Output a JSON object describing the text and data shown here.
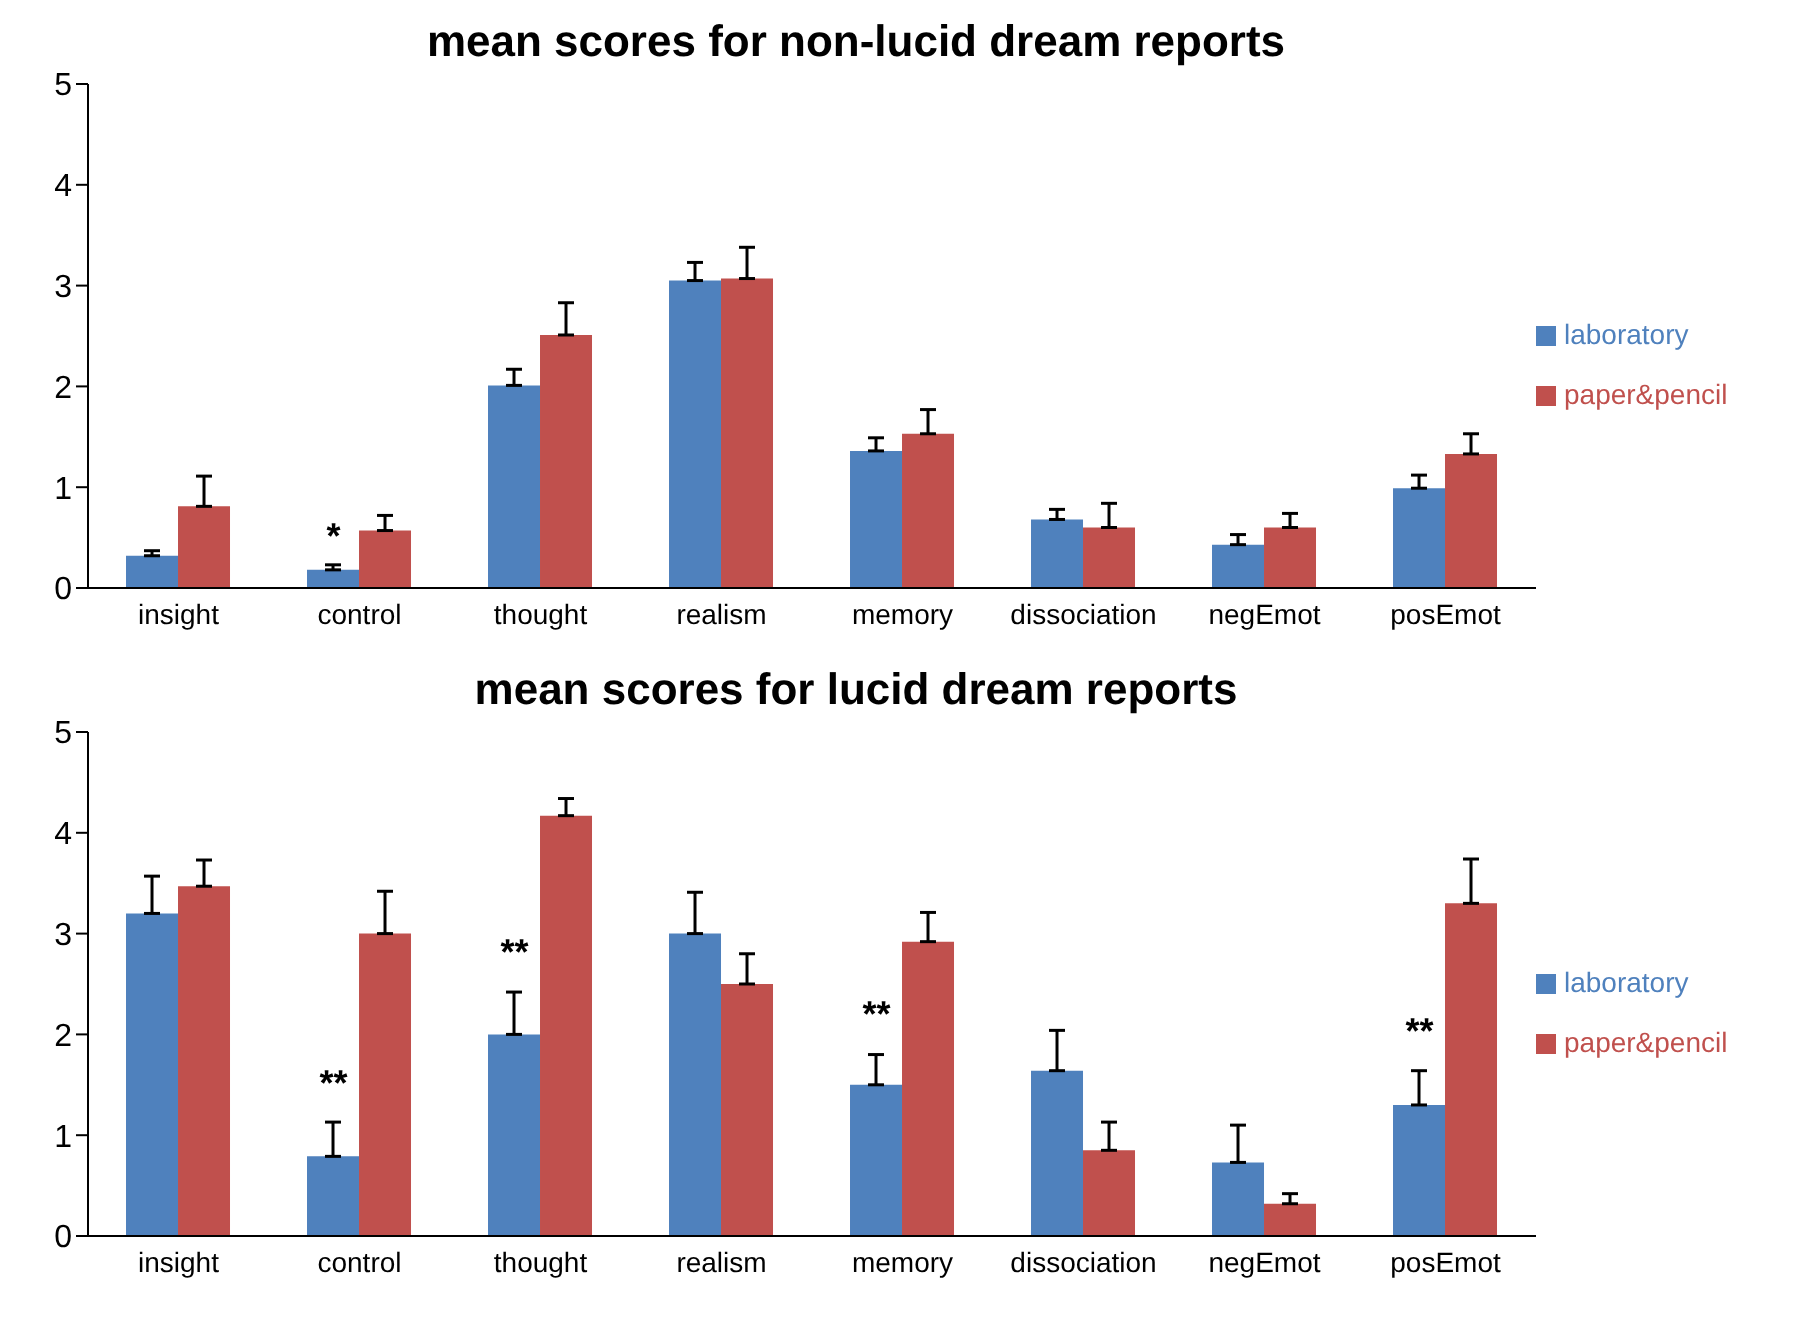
{
  "chart_data": [
    {
      "type": "bar",
      "title": "mean scores for non-lucid dream reports",
      "categories": [
        "insight",
        "control",
        "thought",
        "realism",
        "memory",
        "dissociation",
        "negEmot",
        "posEmot"
      ],
      "series": [
        {
          "name": "laboratory",
          "color": "#4f81bd",
          "values": [
            0.32,
            0.18,
            2.01,
            3.05,
            1.36,
            0.68,
            0.43,
            0.99
          ],
          "errors": [
            [
              0.32,
              0.37
            ],
            [
              0.18,
              0.23
            ],
            [
              2.01,
              2.17
            ],
            [
              3.05,
              3.23
            ],
            [
              1.36,
              1.49
            ],
            [
              0.68,
              0.78
            ],
            [
              0.43,
              0.53
            ],
            [
              0.99,
              1.12
            ]
          ]
        },
        {
          "name": "paper&pencil",
          "color": "#c0504d",
          "values": [
            0.81,
            0.57,
            2.51,
            3.07,
            1.53,
            0.6,
            0.6,
            1.33
          ],
          "errors": [
            [
              0.81,
              1.11
            ],
            [
              0.57,
              0.72
            ],
            [
              2.51,
              2.83
            ],
            [
              3.07,
              3.38
            ],
            [
              1.53,
              1.77
            ],
            [
              0.6,
              0.84
            ],
            [
              0.6,
              0.74
            ],
            [
              1.33,
              1.53
            ]
          ]
        }
      ],
      "ylim": [
        0,
        5
      ],
      "yticks": [
        0,
        1,
        2,
        3,
        4,
        5
      ],
      "grid": false,
      "legend": "right",
      "annotations": [
        {
          "text": "*",
          "x": "control",
          "y": 0.3
        }
      ]
    },
    {
      "type": "bar",
      "title": "mean scores for lucid dream reports",
      "categories": [
        "insight",
        "control",
        "thought",
        "realism",
        "memory",
        "dissociation",
        "negEmot",
        "posEmot"
      ],
      "series": [
        {
          "name": "laboratory",
          "color": "#4f81bd",
          "values": [
            3.2,
            0.79,
            2.0,
            3.0,
            1.5,
            1.64,
            0.73,
            1.3
          ],
          "errors": [
            [
              3.2,
              3.57
            ],
            [
              0.79,
              1.13
            ],
            [
              2.0,
              2.42
            ],
            [
              3.0,
              3.41
            ],
            [
              1.5,
              1.8
            ],
            [
              1.64,
              2.04
            ],
            [
              0.73,
              1.1
            ],
            [
              1.3,
              1.64
            ]
          ]
        },
        {
          "name": "paper&pencil",
          "color": "#c0504d",
          "values": [
            3.47,
            3.0,
            4.17,
            2.5,
            2.92,
            0.85,
            0.32,
            3.3
          ],
          "errors": [
            [
              3.47,
              3.73
            ],
            [
              3.0,
              3.42
            ],
            [
              4.17,
              4.34
            ],
            [
              2.5,
              2.8
            ],
            [
              2.92,
              3.21
            ],
            [
              0.85,
              1.13
            ],
            [
              0.32,
              0.42
            ],
            [
              3.3,
              3.74
            ]
          ]
        }
      ],
      "ylim": [
        0,
        5
      ],
      "yticks": [
        0,
        1,
        2,
        3,
        4,
        5
      ],
      "grid": false,
      "legend": "right",
      "annotations": [
        {
          "text": "**",
          "x": "control",
          "y": 1.3
        },
        {
          "text": "**",
          "x": "thought",
          "y": 2.6
        },
        {
          "text": "**",
          "x": "memory",
          "y": 1.98
        },
        {
          "text": "**",
          "x": "posEmot",
          "y": 1.82
        }
      ]
    }
  ]
}
